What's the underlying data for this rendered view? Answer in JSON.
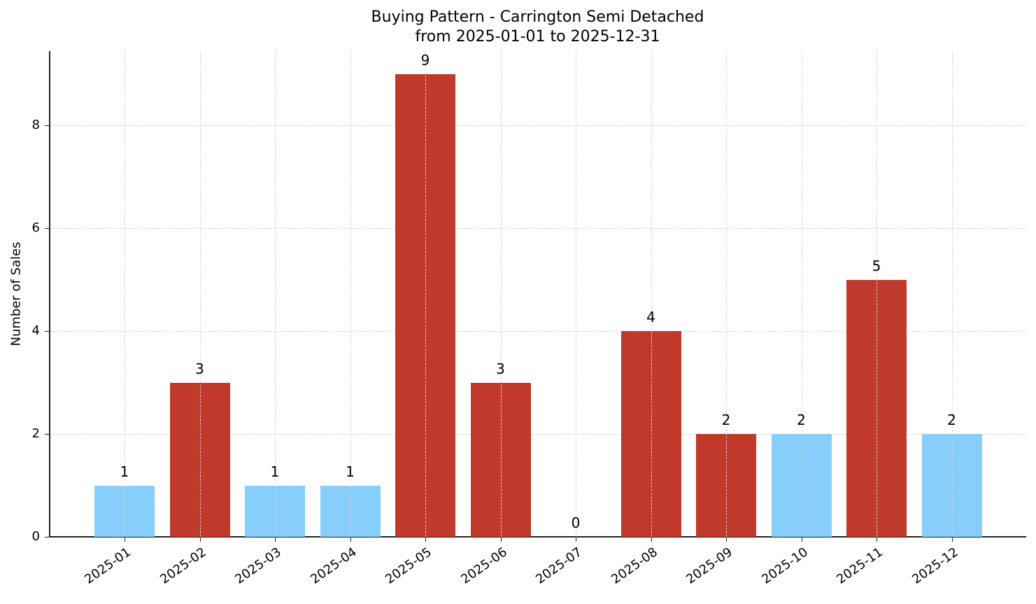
{
  "chart_data": {
    "type": "bar",
    "title": "Buying Pattern - Carrington Semi Detached",
    "subtitle": "from 2025-01-01 to 2025-12-31",
    "xlabel": "",
    "ylabel": "Number of Sales",
    "ylim": [
      0,
      9.45
    ],
    "yticks": [
      0,
      2,
      4,
      6,
      8
    ],
    "grid": true,
    "legend": null,
    "categories": [
      "2025-01",
      "2025-02",
      "2025-03",
      "2025-04",
      "2025-05",
      "2025-06",
      "2025-07",
      "2025-08",
      "2025-09",
      "2025-10",
      "2025-11",
      "2025-12"
    ],
    "values": [
      1,
      3,
      1,
      1,
      9,
      3,
      0,
      4,
      2,
      2,
      5,
      2
    ],
    "bar_colors": [
      "#87cefa",
      "#c0392b",
      "#87cefa",
      "#87cefa",
      "#c0392b",
      "#c0392b",
      "#87cefa",
      "#c0392b",
      "#c0392b",
      "#87cefa",
      "#c0392b",
      "#87cefa"
    ],
    "data_labels": [
      "1",
      "3",
      "1",
      "1",
      "9",
      "3",
      "0",
      "4",
      "2",
      "2",
      "5",
      "2"
    ]
  },
  "colors": {
    "highlight": "#c0392b",
    "normal": "#87cefa",
    "grid": "#d3d3d3",
    "axis": "#222222"
  }
}
